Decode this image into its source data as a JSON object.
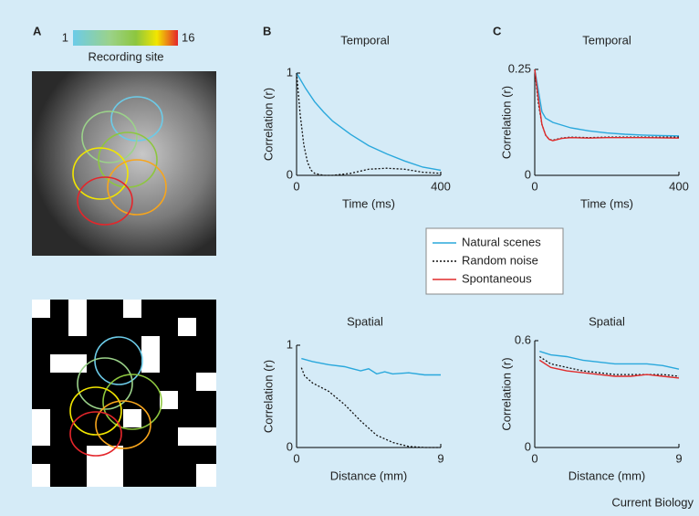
{
  "panel_labels": [
    "A",
    "B",
    "C"
  ],
  "colorbar": {
    "ticks": [
      1,
      16
    ],
    "label": "Recording site"
  },
  "source": "Current Biology",
  "chart_data": [
    {
      "type": "line",
      "title": "Temporal",
      "xlabel": "Time (ms)",
      "ylabel": "Correlation (r)",
      "xlim": [
        0,
        400
      ],
      "ylim": [
        0,
        1
      ],
      "xticks": [
        0,
        400
      ],
      "yticks": [
        0,
        1
      ],
      "series": [
        {
          "color": "#2aa8dc",
          "style": "solid",
          "x": [
            0,
            25,
            50,
            75,
            100,
            150,
            200,
            250,
            300,
            350,
            400
          ],
          "values": [
            1,
            0.85,
            0.72,
            0.62,
            0.53,
            0.4,
            0.29,
            0.21,
            0.14,
            0.08,
            0.05
          ]
        },
        {
          "color": "#111111",
          "style": "dotted",
          "x": [
            0,
            10,
            20,
            30,
            40,
            50,
            75,
            100,
            150,
            200,
            250,
            300,
            350,
            400
          ],
          "values": [
            1,
            0.6,
            0.3,
            0.13,
            0.05,
            0.02,
            0,
            0,
            0.02,
            0.06,
            0.07,
            0.06,
            0.03,
            0.02
          ]
        }
      ]
    },
    {
      "type": "line",
      "title": "Temporal",
      "xlabel": "Time (ms)",
      "ylabel": "Correlation (r)",
      "xlim": [
        0,
        400
      ],
      "ylim": [
        0,
        0.25
      ],
      "xticks": [
        0,
        400
      ],
      "yticks": [
        0,
        0.25
      ],
      "series": [
        {
          "name": "Natural scenes",
          "color": "#2aa8dc",
          "style": "solid",
          "x": [
            0,
            10,
            20,
            30,
            50,
            100,
            150,
            200,
            250,
            300,
            350,
            400
          ],
          "values": [
            0.25,
            0.2,
            0.15,
            0.135,
            0.125,
            0.112,
            0.105,
            0.1,
            0.097,
            0.095,
            0.094,
            0.093
          ]
        },
        {
          "name": "Random noise",
          "color": "#111111",
          "style": "dotted",
          "x": [
            0,
            10,
            20,
            30,
            40,
            50,
            75,
            100,
            150,
            200,
            300,
            400
          ],
          "values": [
            0.25,
            0.17,
            0.12,
            0.095,
            0.085,
            0.083,
            0.088,
            0.09,
            0.089,
            0.09,
            0.09,
            0.09
          ]
        },
        {
          "name": "Spontaneous",
          "color": "#e02b2b",
          "style": "solid",
          "x": [
            0,
            10,
            20,
            30,
            40,
            50,
            75,
            100,
            150,
            200,
            300,
            400
          ],
          "values": [
            0.25,
            0.18,
            0.12,
            0.095,
            0.085,
            0.082,
            0.087,
            0.089,
            0.088,
            0.089,
            0.089,
            0.088
          ]
        }
      ]
    },
    {
      "type": "line",
      "title": "Spatial",
      "xlabel": "Distance (mm)",
      "ylabel": "Correlation (r)",
      "xlim": [
        0,
        9
      ],
      "ylim": [
        0,
        1
      ],
      "xticks": [
        0,
        9
      ],
      "yticks": [
        0,
        1
      ],
      "series": [
        {
          "color": "#2aa8dc",
          "style": "solid",
          "x": [
            0.3,
            1,
            2,
            3,
            4,
            4.5,
            5,
            5.5,
            6,
            7,
            8,
            9
          ],
          "values": [
            0.87,
            0.84,
            0.81,
            0.79,
            0.75,
            0.77,
            0.72,
            0.74,
            0.72,
            0.73,
            0.71,
            0.71
          ]
        },
        {
          "color": "#111111",
          "style": "dotted",
          "x": [
            0.3,
            0.5,
            1,
            2,
            3,
            4,
            5,
            6,
            7,
            8,
            9
          ],
          "values": [
            0.78,
            0.7,
            0.63,
            0.55,
            0.42,
            0.26,
            0.12,
            0.05,
            0.01,
            0,
            0
          ]
        }
      ]
    },
    {
      "type": "line",
      "title": "Spatial",
      "xlabel": "Distance (mm)",
      "ylabel": "Correlation (r)",
      "xlim": [
        0,
        9
      ],
      "ylim": [
        0,
        0.6
      ],
      "xticks": [
        0,
        9
      ],
      "yticks": [
        0,
        0.6
      ],
      "series": [
        {
          "color": "#2aa8dc",
          "style": "solid",
          "x": [
            0.3,
            1,
            2,
            3,
            4,
            5,
            6,
            7,
            8,
            9
          ],
          "values": [
            0.54,
            0.52,
            0.51,
            0.49,
            0.48,
            0.47,
            0.47,
            0.47,
            0.46,
            0.44
          ]
        },
        {
          "color": "#111111",
          "style": "dotted",
          "x": [
            0.3,
            1,
            2,
            3,
            4,
            5,
            6,
            7,
            8,
            9
          ],
          "values": [
            0.51,
            0.47,
            0.45,
            0.43,
            0.42,
            0.41,
            0.41,
            0.41,
            0.41,
            0.4
          ]
        },
        {
          "color": "#e02b2b",
          "style": "solid",
          "x": [
            0.3,
            1,
            2,
            3,
            4,
            5,
            6,
            7,
            8,
            9
          ],
          "values": [
            0.49,
            0.45,
            0.43,
            0.42,
            0.41,
            0.4,
            0.4,
            0.41,
            0.4,
            0.39
          ]
        }
      ]
    }
  ]
}
